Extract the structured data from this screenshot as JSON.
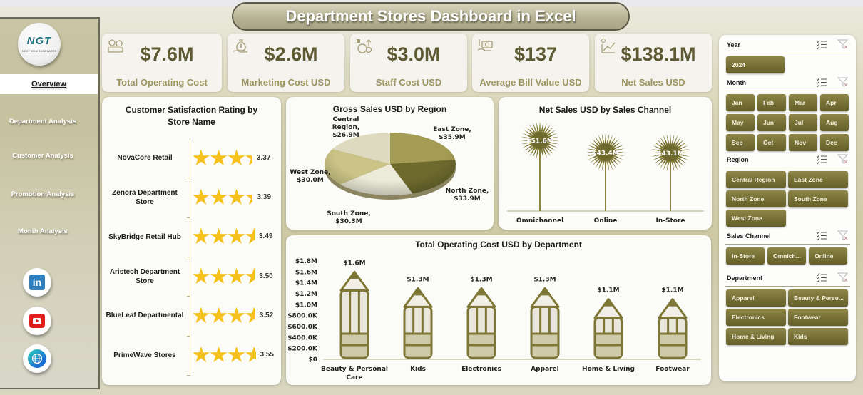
{
  "header": {
    "title": "Department Stores Dashboard in Excel"
  },
  "sidebar": {
    "logo_text": "NGT",
    "logo_subtext": "NEXT GEN TEMPLATES",
    "items": [
      {
        "label": "Overview",
        "active": true
      },
      {
        "label": "Department Analysis"
      },
      {
        "label": "Customer Analysis"
      },
      {
        "label": "Promotion Analysis"
      },
      {
        "label": "Month Analysis"
      }
    ],
    "social": [
      {
        "name": "linkedin-icon",
        "label": "in"
      },
      {
        "name": "youtube-icon"
      },
      {
        "name": "globe-icon"
      }
    ]
  },
  "kpis": [
    {
      "value": "$7.6M",
      "label": "Total Operating Cost",
      "icon": "money-stack-icon"
    },
    {
      "value": "$2.6M",
      "label": "Marketing Cost USD",
      "icon": "money-bag-hand-icon"
    },
    {
      "value": "$3.0M",
      "label": "Staff Cost USD",
      "icon": "money-bag-up-icon"
    },
    {
      "value": "$137",
      "label": "Average Bill Value USD",
      "icon": "cash-hand-icon"
    },
    {
      "value": "$138.1M",
      "label": "Net Sales USD",
      "icon": "growth-chart-icon"
    }
  ],
  "chart_data": [
    {
      "type": "bar",
      "title": "Customer Satisfaction Rating by Store Name",
      "title_lines": [
        "Customer Satisfaction Rating by",
        "Store Name"
      ],
      "categories": [
        "NovaCore Retail",
        "Zenora Department Store",
        "SkyBridge Retail Hub",
        "Aristech Department Store",
        "BlueLeaf Departmental",
        "PrimeWave Stores"
      ],
      "category_lines": [
        [
          "NovaCore Retail"
        ],
        [
          "Zenora Department",
          "Store"
        ],
        [
          "SkyBridge Retail Hub"
        ],
        [
          "Aristech Department",
          "Store"
        ],
        [
          "BlueLeaf Departmental"
        ],
        [
          "PrimeWave Stores"
        ]
      ],
      "values": [
        3.37,
        3.39,
        3.49,
        3.5,
        3.52,
        3.55
      ],
      "value_labels": [
        "3.37",
        "3.39",
        "3.49",
        "3.50",
        "3.52",
        "3.55"
      ],
      "max": 5,
      "style": "star-rating",
      "star_color": "#f5c11c"
    },
    {
      "type": "pie",
      "title": "Gross Sales USD by Region",
      "categories": [
        "East Zone",
        "North Zone",
        "South Zone",
        "West Zone",
        "Central Region"
      ],
      "values": [
        35.9,
        33.9,
        30.3,
        30.0,
        26.9
      ],
      "labels": [
        [
          "East Zone,",
          "$35.9M"
        ],
        [
          "North Zone,",
          "$33.9M"
        ],
        [
          "South Zone,",
          "$30.3M"
        ],
        [
          "West Zone,",
          "$30.0M"
        ],
        [
          "Central",
          "Region,",
          "$26.9M"
        ]
      ],
      "unit": "$M",
      "colors": [
        "#a49c55",
        "#6e6a2e",
        "#ecebd9",
        "#cbc486",
        "#dedac0"
      ]
    },
    {
      "type": "bar",
      "style": "lollipop-starburst",
      "title": "Net Sales USD by Sales Channel",
      "categories": [
        "Omnichannel",
        "Online",
        "In-Store"
      ],
      "values": [
        51.6,
        43.4,
        43.1
      ],
      "value_labels": [
        "$51.6M",
        "$43.4M",
        "$43.1M"
      ],
      "unit": "$M",
      "color": "#7d7634"
    },
    {
      "type": "bar",
      "style": "pencil",
      "title": "Total Operating Cost USD by Department",
      "categories": [
        "Beauty & Personal Care",
        "Kids",
        "Electronics",
        "Apparel",
        "Home & Living",
        "Footwear"
      ],
      "category_lines": [
        [
          "Beauty & Personal",
          "Care"
        ],
        [
          "Kids"
        ],
        [
          "Electronics"
        ],
        [
          "Apparel"
        ],
        [
          "Home & Living"
        ],
        [
          "Footwear"
        ]
      ],
      "values": [
        1.6,
        1.3,
        1.3,
        1.3,
        1.1,
        1.1
      ],
      "value_labels": [
        "$1.6M",
        "$1.3M",
        "$1.3M",
        "$1.3M",
        "$1.1M",
        "$1.1M"
      ],
      "unit": "$M",
      "ylim": [
        0,
        1.8
      ],
      "yticks": [
        "$0",
        "$200.0K",
        "$400.0K",
        "$600.0K",
        "$800.0K",
        "$1.0M",
        "$1.2M",
        "$1.4M",
        "$1.6M",
        "$1.8M"
      ],
      "color": "#7d7634"
    }
  ],
  "slicers": [
    {
      "title": "Year",
      "items": [
        "2024"
      ]
    },
    {
      "title": "Month",
      "items": [
        "Jan",
        "Feb",
        "Mar",
        "Apr",
        "May",
        "Jun",
        "Jul",
        "Aug",
        "Sep",
        "Oct",
        "Nov",
        "Dec"
      ]
    },
    {
      "title": "Region",
      "items": [
        "Central Region",
        "East Zone",
        "North Zone",
        "South Zone",
        "West Zone"
      ]
    },
    {
      "title": "Sales Channel",
      "items": [
        "In-Store",
        "Omnich...",
        "Online"
      ]
    },
    {
      "title": "Department",
      "items": [
        "Apparel",
        "Beauty & Perso...",
        "Electronics",
        "Footwear",
        "Home & Living",
        "Kids"
      ]
    }
  ],
  "colors": {
    "accent": "#746d33",
    "kpi_value": "#5e5a33",
    "kpi_label": "#9c9460",
    "panel_bg": "#fbfbf7"
  }
}
